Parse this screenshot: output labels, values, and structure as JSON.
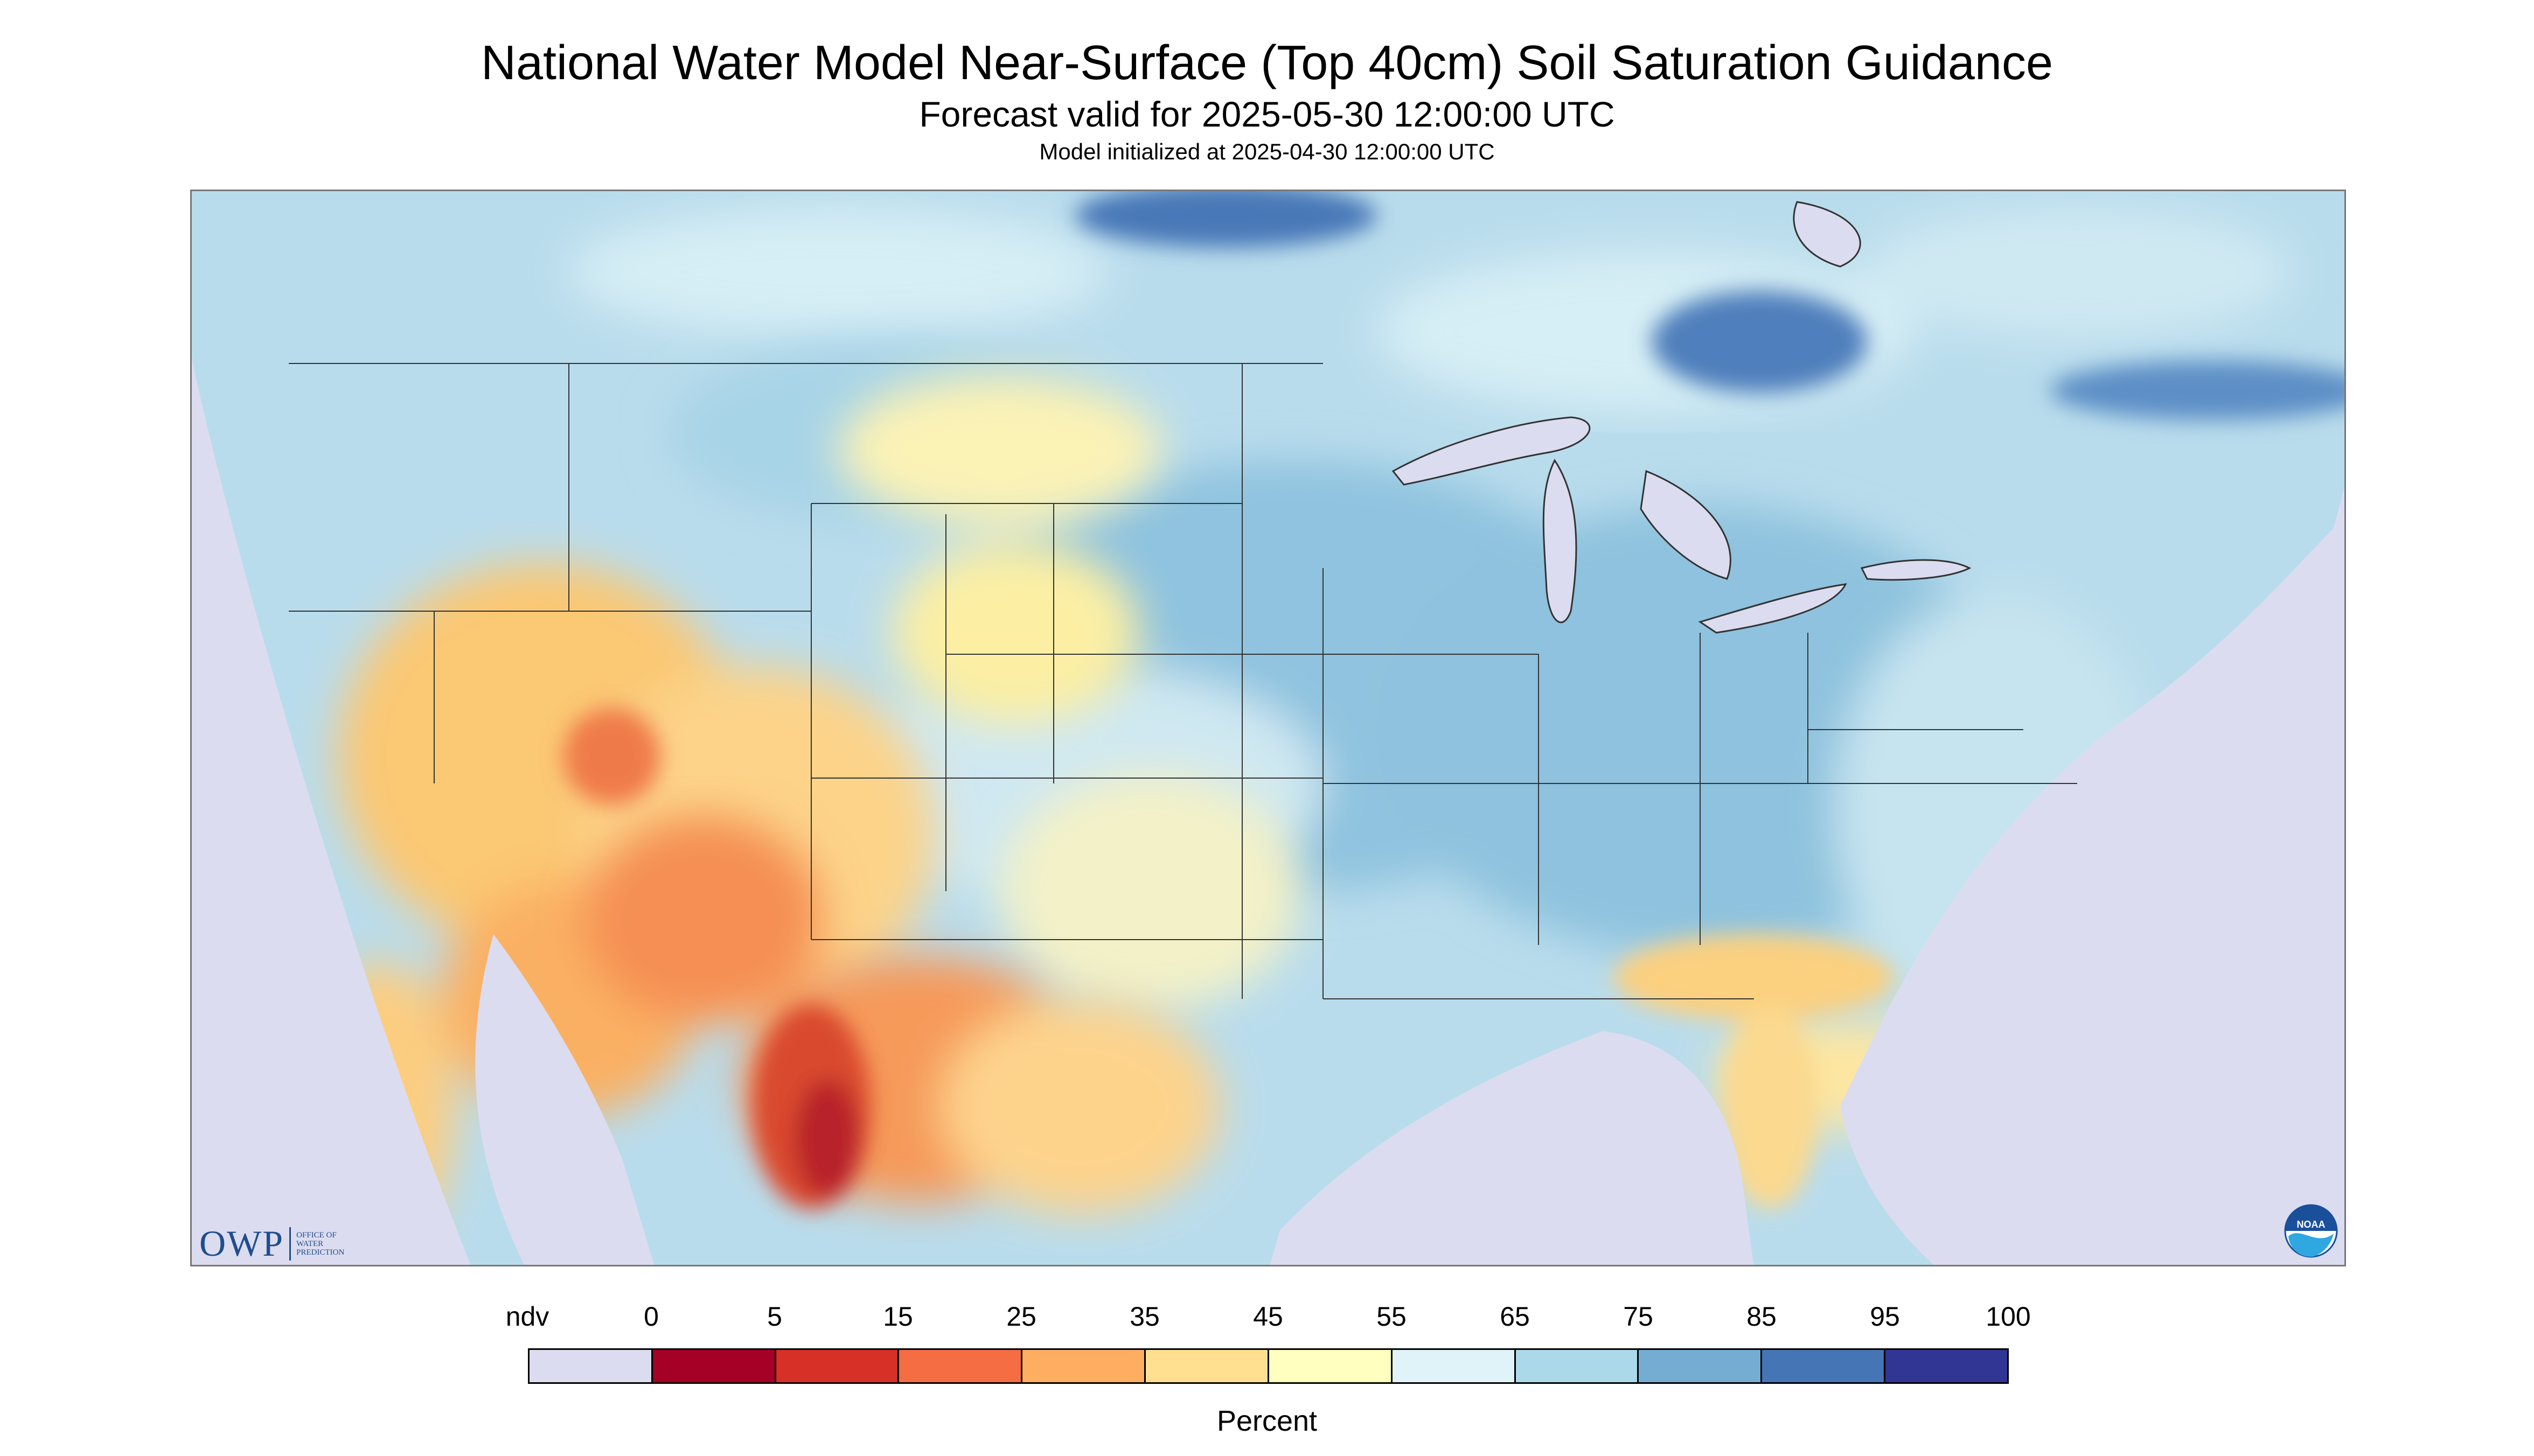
{
  "title": "National Water Model Near-Surface (Top 40cm) Soil Saturation Guidance",
  "subtitle": "Forecast valid for 2025-05-30 12:00:00 UTC",
  "init_line": "Model initialized at 2025-04-30 12:00:00 UTC",
  "legend": {
    "labels": [
      "ndv",
      "0",
      "5",
      "15",
      "25",
      "35",
      "45",
      "55",
      "65",
      "75",
      "85",
      "95",
      "100"
    ],
    "colors": [
      "#dcdcf0",
      "#a50026",
      "#d73027",
      "#f46d43",
      "#fdae61",
      "#fee090",
      "#ffffbf",
      "#e0f3f8",
      "#abd9e9",
      "#74add1",
      "#4575b4",
      "#313695"
    ],
    "units": "Percent"
  },
  "logos": {
    "owp_letters": "OWP",
    "owp_full": "Office of Water Prediction",
    "noaa": "NOAA"
  },
  "map_regions": [
    {
      "name": "southwest-dry-region",
      "value_class": "15-35"
    },
    {
      "name": "sonora-mexico-driest",
      "value_class": "0-15"
    },
    {
      "name": "texas-dry-region",
      "value_class": "25-45"
    },
    {
      "name": "great-plains-moderate",
      "value_class": "45-55"
    },
    {
      "name": "midwest-moist",
      "value_class": "65-85"
    },
    {
      "name": "ontario-wet",
      "value_class": "85-95"
    },
    {
      "name": "florida-coast-dry",
      "value_class": "35-45"
    },
    {
      "name": "out-of-domain-ndv",
      "value_class": "ndv"
    }
  ]
}
